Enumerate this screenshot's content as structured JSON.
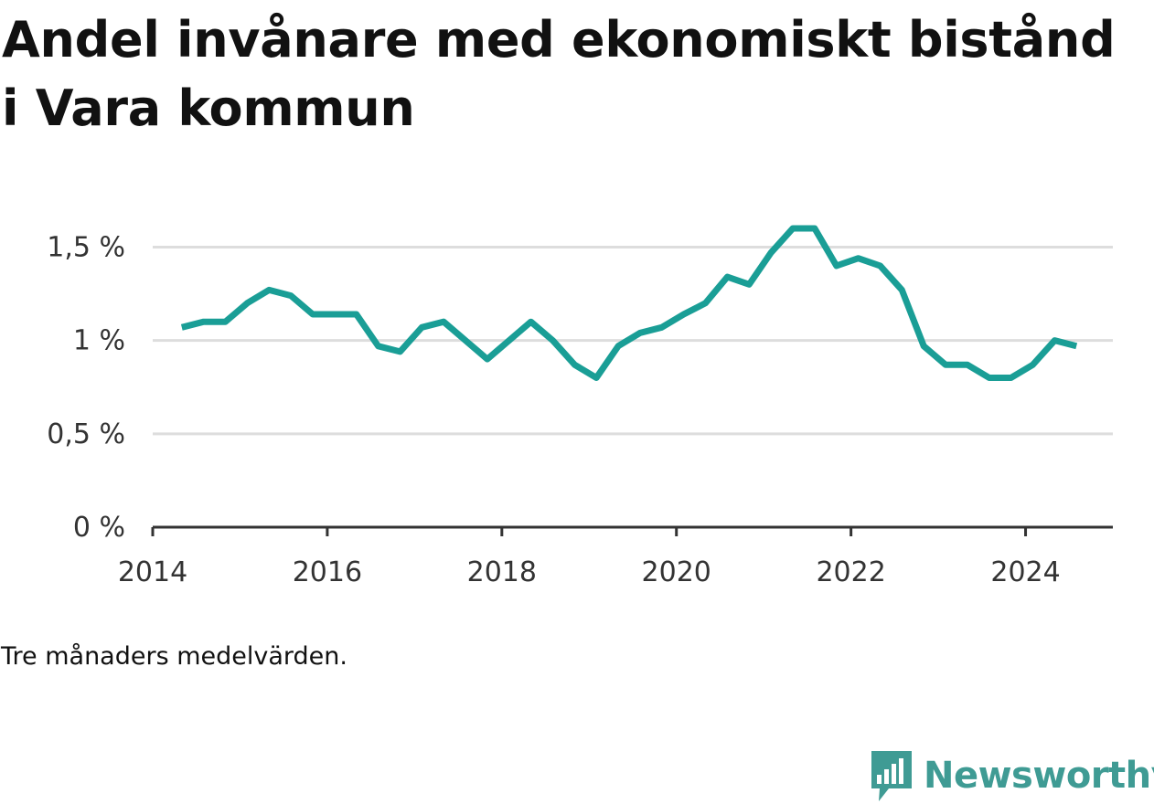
{
  "title": "Andel invånare med ekonomiskt bistånd i Vara kommun",
  "note": "Tre månaders medelvärden.",
  "brand": {
    "name": "Newsworthy",
    "icon": "newsworthy-logo-icon",
    "color": "#3f9b94"
  },
  "colors": {
    "line": "#1a9e96",
    "grid": "#dddddd",
    "axis": "#333333",
    "tick_text": "#333333"
  },
  "chart_data": {
    "type": "line",
    "title": "Andel invånare med ekonomiskt bistånd i Vara kommun",
    "xlabel": "",
    "ylabel": "",
    "grid": true,
    "x_ticks": [
      "2014",
      "2016",
      "2018",
      "2020",
      "2022",
      "2024"
    ],
    "y_ticks": [
      {
        "value": 0,
        "label": "0 %"
      },
      {
        "value": 0.5,
        "label": "0,5 %"
      },
      {
        "value": 1,
        "label": "1 %"
      },
      {
        "value": 1.5,
        "label": "1,5 %"
      }
    ],
    "xlim": [
      "2014-01",
      "2025-01"
    ],
    "ylim": [
      0,
      1.6
    ],
    "series": [
      {
        "x": [
          "2014-05",
          "2014-08",
          "2014-11",
          "2015-02",
          "2015-05",
          "2015-08",
          "2015-11",
          "2016-02",
          "2016-05",
          "2016-08",
          "2016-11",
          "2017-02",
          "2017-05",
          "2017-08",
          "2017-11",
          "2018-02",
          "2018-05",
          "2018-08",
          "2018-11",
          "2019-02",
          "2019-05",
          "2019-08",
          "2019-11",
          "2020-02",
          "2020-05",
          "2020-08",
          "2020-11",
          "2021-02",
          "2021-05",
          "2021-08",
          "2021-11",
          "2022-02",
          "2022-05",
          "2022-08",
          "2022-11",
          "2023-02",
          "2023-05",
          "2023-08",
          "2023-11",
          "2024-02",
          "2024-05",
          "2024-08"
        ],
        "values": [
          1.07,
          1.1,
          1.1,
          1.2,
          1.27,
          1.24,
          1.14,
          1.14,
          1.14,
          0.97,
          0.94,
          1.07,
          1.1,
          1.0,
          0.9,
          1.0,
          1.1,
          1.0,
          0.87,
          0.8,
          0.97,
          1.04,
          1.07,
          1.14,
          1.2,
          1.34,
          1.3,
          1.47,
          1.6,
          1.6,
          1.4,
          1.44,
          1.4,
          1.27,
          0.97,
          0.87,
          0.87,
          0.8,
          0.8,
          0.87,
          1.0,
          0.97
        ]
      }
    ]
  }
}
